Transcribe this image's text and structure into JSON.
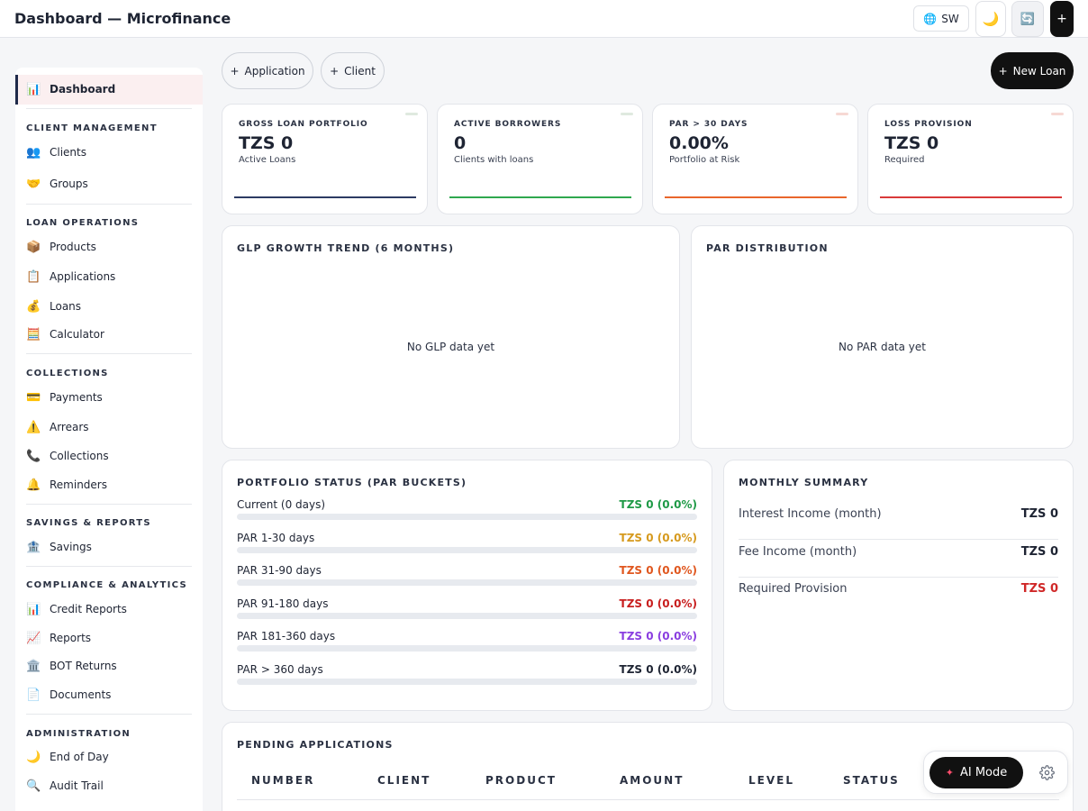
{
  "header": {
    "title": "Dashboard — Microfinance",
    "language": "SW",
    "icons": [
      "globe-icon",
      "moon-icon",
      "sync-icon",
      "plus-icon"
    ]
  },
  "sidebar": {
    "active": {
      "icon": "📊",
      "label": "Dashboard"
    },
    "sections": {
      "client_management": "CLIENT MANAGEMENT",
      "loan_operations": "LOAN OPERATIONS",
      "collections": "COLLECTIONS",
      "savings_reports": "SAVINGS & REPORTS",
      "compliance_analytics": "COMPLIANCE & ANALYTICS",
      "administration": "ADMINISTRATION"
    },
    "items": {
      "clients": {
        "icon": "👥",
        "label": "Clients"
      },
      "groups": {
        "icon": "🤝",
        "label": "Groups"
      },
      "products": {
        "icon": "📦",
        "label": "Products"
      },
      "applications": {
        "icon": "📋",
        "label": "Applications"
      },
      "loans": {
        "icon": "💰",
        "label": "Loans"
      },
      "calculator": {
        "icon": "🧮",
        "label": "Calculator"
      },
      "payments": {
        "icon": "💳",
        "label": "Payments"
      },
      "arrears": {
        "icon": "⚠️",
        "label": "Arrears"
      },
      "collections": {
        "icon": "📞",
        "label": "Collections"
      },
      "reminders": {
        "icon": "🔔",
        "label": "Reminders"
      },
      "savings": {
        "icon": "🏦",
        "label": "Savings"
      },
      "credit_reports": {
        "icon": "📊",
        "label": "Credit Reports"
      },
      "reports": {
        "icon": "📈",
        "label": "Reports"
      },
      "bot_returns": {
        "icon": "🏛️",
        "label": "BOT Returns"
      },
      "documents": {
        "icon": "📄",
        "label": "Documents"
      },
      "end_of_day": {
        "icon": "🌙",
        "label": "End of Day"
      },
      "audit_trail": {
        "icon": "🔍",
        "label": "Audit Trail"
      }
    }
  },
  "actions": {
    "application": "Application",
    "client": "Client",
    "new_loan": "New Loan"
  },
  "kpis": {
    "glp": {
      "label": "GROSS LOAN PORTFOLIO",
      "value": "TZS 0",
      "sub": "Active Loans",
      "color": "#2d3b63"
    },
    "borrowers": {
      "label": "ACTIVE BORROWERS",
      "value": "0",
      "sub": "Clients with loans",
      "color": "#2fa84f"
    },
    "par30": {
      "label": "PAR > 30 DAYS",
      "value": "0.00%",
      "sub": "Portfolio at Risk",
      "color": "#e9662c"
    },
    "provision": {
      "label": "LOSS PROVISION",
      "value": "TZS 0",
      "sub": "Required",
      "color": "#d93a3a"
    }
  },
  "glp_trend": {
    "title": "GLP GROWTH TREND (6 MONTHS)",
    "empty": "No GLP data yet"
  },
  "par_distribution": {
    "title": "PAR DISTRIBUTION",
    "empty": "No PAR data yet"
  },
  "portfolio_status": {
    "title": "PORTFOLIO STATUS (PAR BUCKETS)",
    "buckets": [
      {
        "label": "Current (0 days)",
        "value": "TZS 0 (0.0%)",
        "percent": 0,
        "color": "#1f9a47"
      },
      {
        "label": "PAR 1-30 days",
        "value": "TZS 0 (0.0%)",
        "percent": 0,
        "color": "#d69a1e"
      },
      {
        "label": "PAR 31-90 days",
        "value": "TZS 0 (0.0%)",
        "percent": 0,
        "color": "#e0571f"
      },
      {
        "label": "PAR 91-180 days",
        "value": "TZS 0 (0.0%)",
        "percent": 0,
        "color": "#c81e1e"
      },
      {
        "label": "PAR 181-360 days",
        "value": "TZS 0 (0.0%)",
        "percent": 0,
        "color": "#8a3ee0"
      },
      {
        "label": "PAR > 360 days",
        "value": "TZS 0 (0.0%)",
        "percent": 0,
        "color": "#1e2433"
      }
    ]
  },
  "monthly_summary": {
    "title": "MONTHLY SUMMARY",
    "rows": [
      {
        "label": "Interest Income (month)",
        "value": "TZS 0"
      },
      {
        "label": "Fee Income (month)",
        "value": "TZS 0"
      },
      {
        "label": "Required Provision",
        "value": "TZS 0",
        "color": "#d02828"
      }
    ]
  },
  "pending_applications": {
    "title": "PENDING APPLICATIONS",
    "columns": [
      "NUMBER",
      "CLIENT",
      "PRODUCT",
      "AMOUNT",
      "LEVEL",
      "STATUS"
    ]
  },
  "ai": {
    "label": "AI Mode"
  }
}
